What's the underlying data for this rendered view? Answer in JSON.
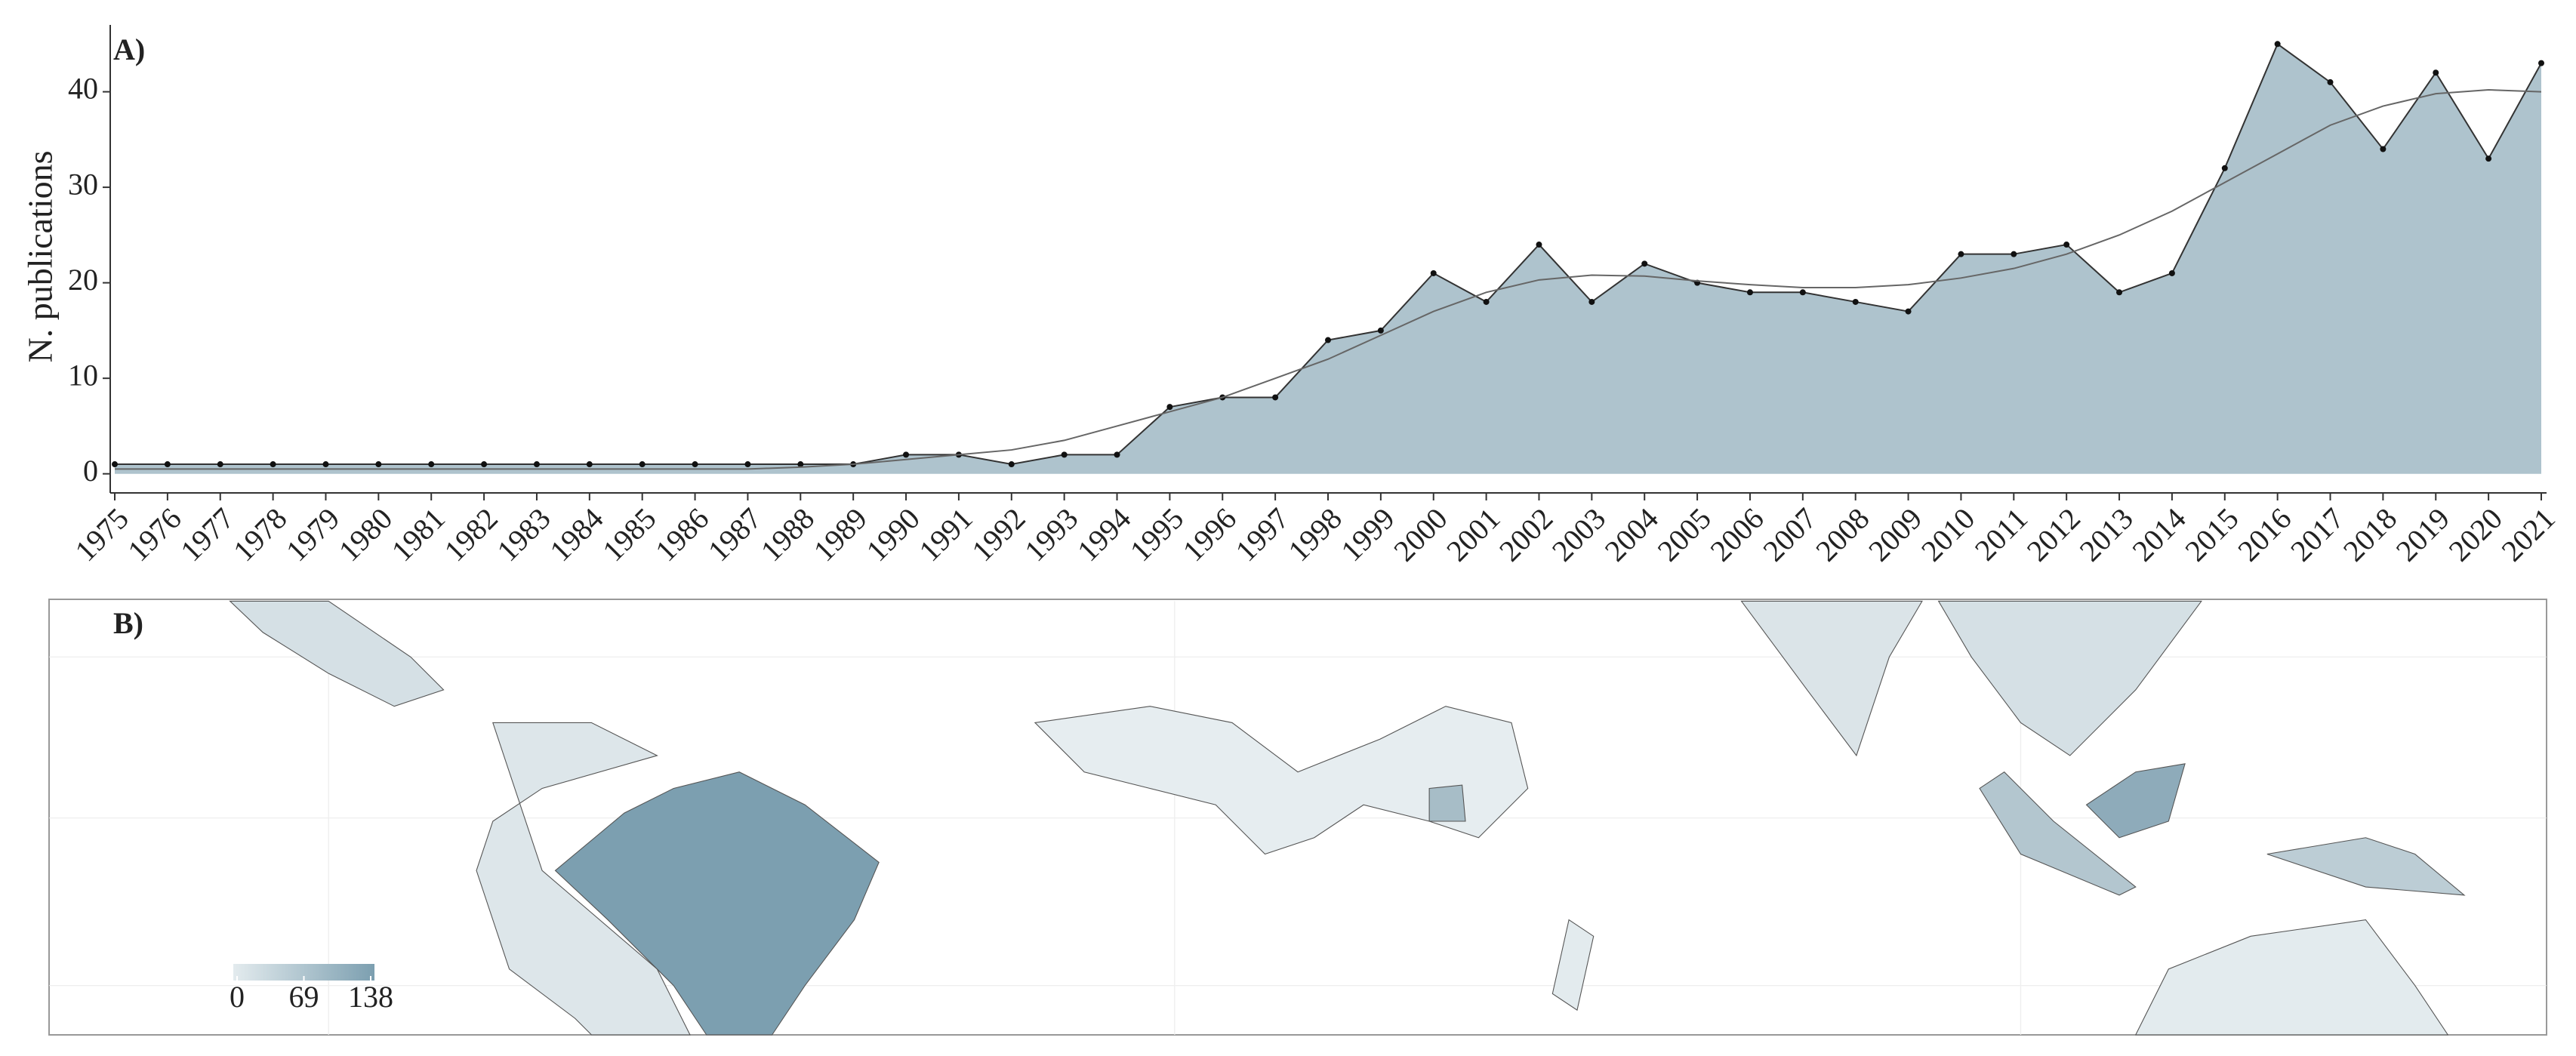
{
  "chart_data": {
    "type": "area",
    "panel_label": "A)",
    "ylabel": "N. publications",
    "categories": [
      "1975",
      "1976",
      "1977",
      "1978",
      "1979",
      "1980",
      "1981",
      "1982",
      "1983",
      "1984",
      "1985",
      "1986",
      "1987",
      "1988",
      "1989",
      "1990",
      "1991",
      "1992",
      "1993",
      "1994",
      "1995",
      "1996",
      "1997",
      "1998",
      "1999",
      "2000",
      "2001",
      "2002",
      "2003",
      "2004",
      "2005",
      "2006",
      "2007",
      "2008",
      "2009",
      "2010",
      "2011",
      "2012",
      "2013",
      "2014",
      "2015",
      "2016",
      "2017",
      "2018",
      "2019",
      "2020",
      "2021"
    ],
    "values": [
      1,
      1,
      1,
      1,
      1,
      1,
      1,
      1,
      1,
      1,
      1,
      1,
      1,
      1,
      1,
      2,
      2,
      1,
      2,
      2,
      7,
      8,
      8,
      14,
      15,
      21,
      18,
      24,
      18,
      22,
      20,
      19,
      19,
      18,
      17,
      23,
      23,
      24,
      19,
      21,
      32,
      45,
      41,
      34,
      42,
      33,
      43
    ],
    "trend_values": [
      0.5,
      0.5,
      0.5,
      0.5,
      0.5,
      0.5,
      0.5,
      0.5,
      0.5,
      0.5,
      0.5,
      0.5,
      0.5,
      0.7,
      1,
      1.5,
      2,
      2.5,
      3.5,
      5,
      6.5,
      8,
      10,
      12,
      14.5,
      17,
      19,
      20.3,
      20.8,
      20.7,
      20.2,
      19.8,
      19.5,
      19.5,
      19.8,
      20.5,
      21.5,
      23,
      25,
      27.5,
      30.5,
      33.5,
      36.5,
      38.5,
      39.8,
      40.2,
      40
    ],
    "color": "#aec3cd",
    "ylim": [
      -2,
      47
    ],
    "yticks": [
      0,
      10,
      20,
      30,
      40
    ],
    "map": {
      "panel_label": "B)",
      "colorbar": {
        "ticks": [
          0,
          69,
          138
        ],
        "colors": [
          "#e3ebee",
          "#7c9fb0"
        ]
      }
    }
  }
}
